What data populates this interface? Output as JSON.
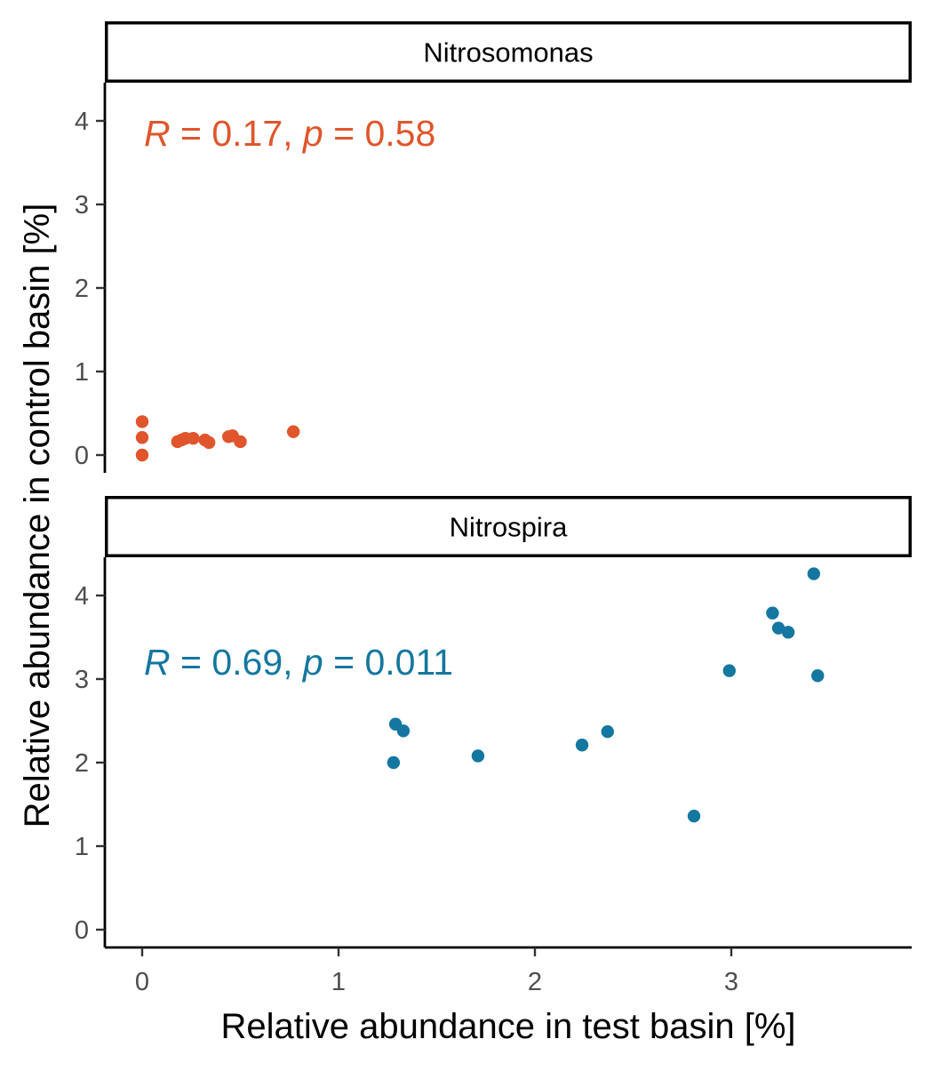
{
  "chart_data": {
    "type": "scatter",
    "xlabel": "Relative abundance in test basin [%]",
    "ylabel": "Relative abundance in control basin [%]",
    "xlim": [
      -0.18,
      3.9
    ],
    "ylim": [
      -0.2,
      4.45
    ],
    "x_ticks": [
      0,
      1,
      2,
      3
    ],
    "y_ticks": [
      0,
      1,
      2,
      3,
      4
    ],
    "grid": false,
    "legend": "none",
    "panels": [
      {
        "strip": "Nitrosomonas",
        "color": "#E0552B",
        "annotation": {
          "r_symbol": "R",
          "r_text": " = 0.17, ",
          "p_symbol": "p",
          "p_text": " = 0.58"
        },
        "points": [
          {
            "x": 0.0,
            "y": 0.0
          },
          {
            "x": 0.0,
            "y": 0.21
          },
          {
            "x": 0.0,
            "y": 0.4
          },
          {
            "x": 0.18,
            "y": 0.16
          },
          {
            "x": 0.2,
            "y": 0.18
          },
          {
            "x": 0.22,
            "y": 0.2
          },
          {
            "x": 0.26,
            "y": 0.2
          },
          {
            "x": 0.32,
            "y": 0.18
          },
          {
            "x": 0.34,
            "y": 0.15
          },
          {
            "x": 0.44,
            "y": 0.22
          },
          {
            "x": 0.46,
            "y": 0.23
          },
          {
            "x": 0.5,
            "y": 0.16
          },
          {
            "x": 0.77,
            "y": 0.28
          }
        ]
      },
      {
        "strip": "Nitrospira",
        "color": "#1477A0",
        "annotation": {
          "r_symbol": "R",
          "r_text": " = 0.69, ",
          "p_symbol": "p",
          "p_text": " = 0.011"
        },
        "points": [
          {
            "x": 1.28,
            "y": 2.0
          },
          {
            "x": 1.29,
            "y": 2.46
          },
          {
            "x": 1.33,
            "y": 2.38
          },
          {
            "x": 1.71,
            "y": 2.08
          },
          {
            "x": 2.24,
            "y": 2.21
          },
          {
            "x": 2.37,
            "y": 2.37
          },
          {
            "x": 2.81,
            "y": 1.36
          },
          {
            "x": 2.99,
            "y": 3.1
          },
          {
            "x": 3.21,
            "y": 3.79
          },
          {
            "x": 3.24,
            "y": 3.61
          },
          {
            "x": 3.29,
            "y": 3.56
          },
          {
            "x": 3.42,
            "y": 4.26
          },
          {
            "x": 3.44,
            "y": 3.04
          }
        ]
      }
    ]
  }
}
